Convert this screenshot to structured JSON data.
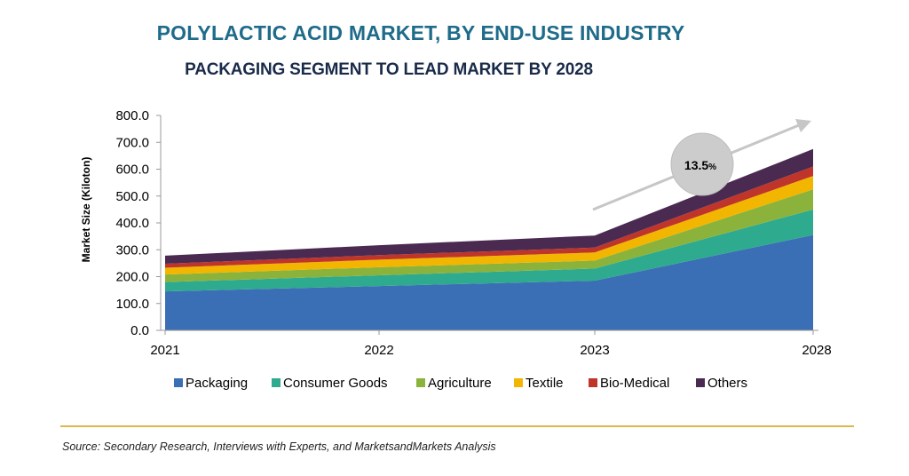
{
  "title": "POLYLACTIC ACID MARKET, BY END-USE INDUSTRY",
  "subtitle": "PACKAGING SEGMENT TO LEAD MARKET BY 2028",
  "source": "Source: Secondary Research, Interviews with Experts, and MarketsandMarkets Analysis",
  "callout": "13.5",
  "callout_unit": "%",
  "chart_data": {
    "type": "area",
    "stacked": true,
    "categories": [
      "2021",
      "2022",
      "2023",
      "2028"
    ],
    "ylabel": "Market Size (Kiloton)",
    "ylim": [
      0,
      800
    ],
    "yticks": [
      "0.0",
      "100.0",
      "200.0",
      "300.0",
      "400.0",
      "500.0",
      "600.0",
      "700.0",
      "800.0"
    ],
    "legend_position": "bottom",
    "series": [
      {
        "name": "Packaging",
        "color": "#3a6fb5",
        "values": [
          145,
          165,
          185,
          355
        ]
      },
      {
        "name": "Consumer Goods",
        "color": "#2eaa8e",
        "values": [
          35,
          40,
          45,
          95
        ]
      },
      {
        "name": "Agriculture",
        "color": "#8bb33c",
        "values": [
          28,
          30,
          30,
          75
        ]
      },
      {
        "name": "Textile",
        "color": "#f2b600",
        "values": [
          25,
          28,
          30,
          50
        ]
      },
      {
        "name": "Bio-Medical",
        "color": "#c0352a",
        "values": [
          15,
          17,
          18,
          35
        ]
      },
      {
        "name": "Others",
        "color": "#4b2a52",
        "values": [
          30,
          37,
          45,
          65
        ]
      }
    ]
  }
}
